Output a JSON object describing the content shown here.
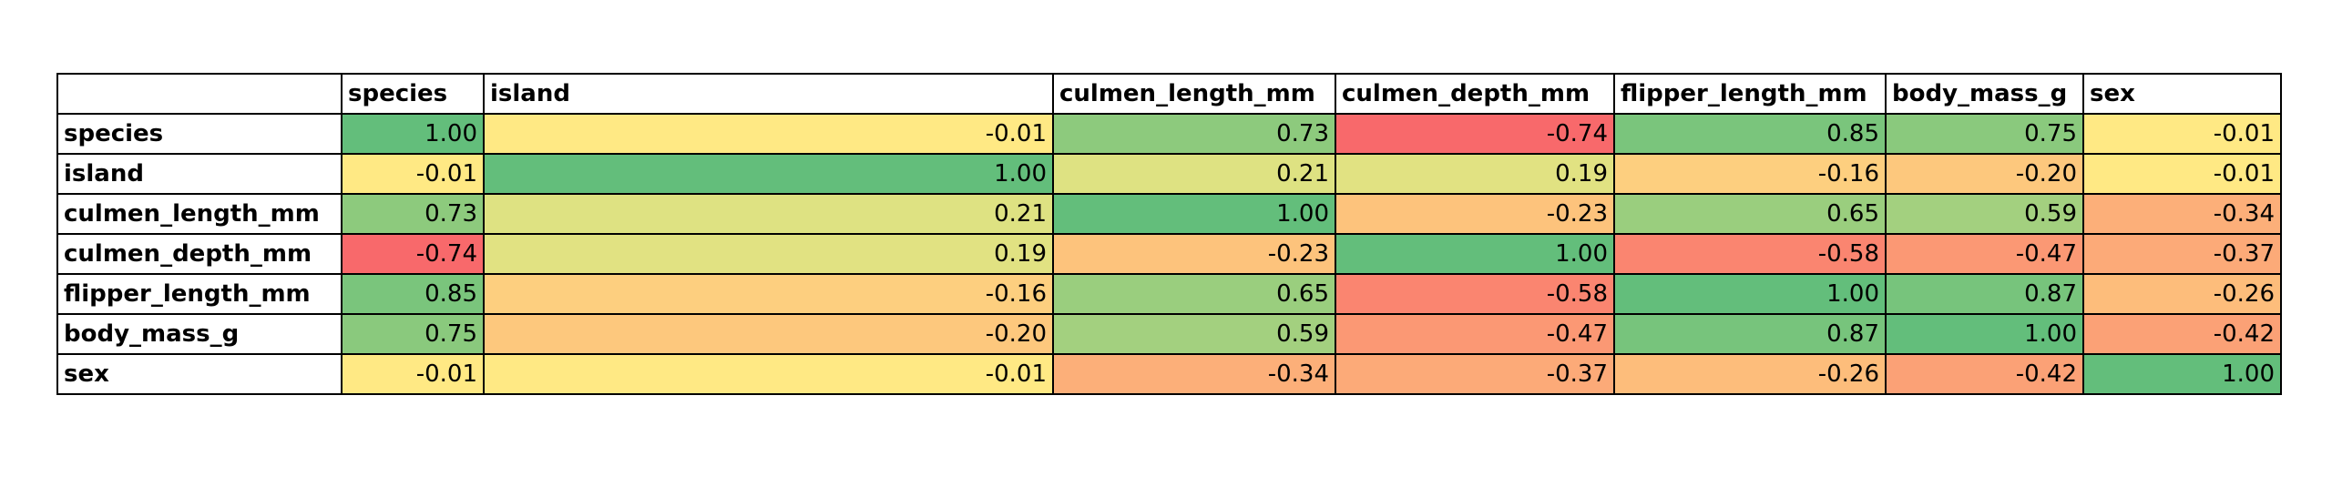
{
  "table": {
    "columns": [
      "species",
      "island",
      "culmen_length_mm",
      "culmen_depth_mm",
      "flipper_length_mm",
      "body_mass_g",
      "sex"
    ],
    "rows": [
      {
        "label": "species",
        "values": [
          "1.00",
          "-0.01",
          "0.73",
          "-0.74",
          "0.85",
          "0.75",
          "-0.01"
        ]
      },
      {
        "label": "island",
        "values": [
          "-0.01",
          "1.00",
          "0.21",
          "0.19",
          "-0.16",
          "-0.20",
          "-0.01"
        ]
      },
      {
        "label": "culmen_length_mm",
        "values": [
          "0.73",
          "0.21",
          "1.00",
          "-0.23",
          "0.65",
          "0.59",
          "-0.34"
        ]
      },
      {
        "label": "culmen_depth_mm",
        "values": [
          "-0.74",
          "0.19",
          "-0.23",
          "1.00",
          "-0.58",
          "-0.47",
          "-0.37"
        ]
      },
      {
        "label": "flipper_length_mm",
        "values": [
          "0.85",
          "-0.16",
          "0.65",
          "-0.58",
          "1.00",
          "0.87",
          "-0.26"
        ]
      },
      {
        "label": "body_mass_g",
        "values": [
          "0.75",
          "-0.20",
          "0.59",
          "-0.47",
          "0.87",
          "1.00",
          "-0.42"
        ]
      },
      {
        "label": "sex",
        "values": [
          "-0.01",
          "-0.01",
          "-0.34",
          "-0.37",
          "-0.26",
          "-0.42",
          "1.00"
        ]
      }
    ],
    "color_scale": {
      "low": "#f8696b",
      "mid": "#ffeb84",
      "high": "#63be7b"
    }
  }
}
